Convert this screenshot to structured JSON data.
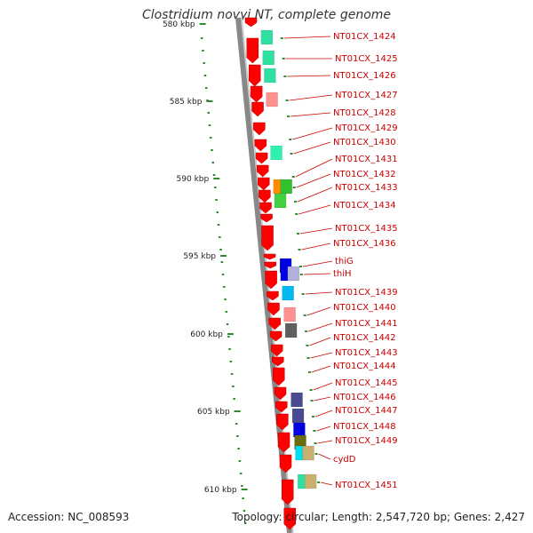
{
  "title": "Clostridium novyi NT, complete genome",
  "footer": {
    "accession": "Accession: NC_008593",
    "summary": "Topology: circular; Length: 2,547,720 bp; Genes: 2,427"
  },
  "colors": {
    "backbone": "#888888",
    "gene_arrow": "#ff0000",
    "scale_tick": "#2e8b2e",
    "label_text": "#cc0000",
    "leader_line": "#cc0000"
  },
  "scale": {
    "unit": "kbp",
    "labeled_ticks": [
      "580 kbp",
      "585 kbp",
      "590 kbp",
      "595 kbp",
      "600 kbp",
      "605 kbp",
      "610 kbp"
    ]
  },
  "genes": [
    {
      "label": "NT01CX_1424",
      "cog_colors": [
        "#30e0a0"
      ]
    },
    {
      "label": "NT01CX_1425",
      "cog_colors": [
        "#30e0a0"
      ]
    },
    {
      "label": "NT01CX_1426",
      "cog_colors": [
        "#30e0a0"
      ]
    },
    {
      "label": "NT01CX_1427",
      "cog_colors": [
        "#ff9090"
      ]
    },
    {
      "label": "NT01CX_1428",
      "cog_colors": []
    },
    {
      "label": "NT01CX_1429",
      "cog_colors": []
    },
    {
      "label": "NT01CX_1430",
      "cog_colors": [
        "#30f0b0"
      ]
    },
    {
      "label": "NT01CX_1431",
      "cog_colors": []
    },
    {
      "label": "NT01CX_1432",
      "cog_colors": [
        "#ff8c00",
        "#30c030"
      ]
    },
    {
      "label": "NT01CX_1433",
      "cog_colors": [
        "#40d040"
      ]
    },
    {
      "label": "NT01CX_1434",
      "cog_colors": []
    },
    {
      "label": "NT01CX_1435",
      "cog_colors": []
    },
    {
      "label": "NT01CX_1436",
      "cog_colors": []
    },
    {
      "label": "thiG",
      "cog_colors": [
        "#0000e0"
      ]
    },
    {
      "label": "thiH",
      "cog_colors": [
        "#0000e0",
        "#b0b0d8"
      ]
    },
    {
      "label": "NT01CX_1439",
      "cog_colors": [
        "#00b8f0"
      ]
    },
    {
      "label": "NT01CX_1440",
      "cog_colors": [
        "#ff9090"
      ]
    },
    {
      "label": "NT01CX_1441",
      "cog_colors": [
        "#606060"
      ]
    },
    {
      "label": "NT01CX_1442",
      "cog_colors": []
    },
    {
      "label": "NT01CX_1443",
      "cog_colors": []
    },
    {
      "label": "NT01CX_1444",
      "cog_colors": []
    },
    {
      "label": "NT01CX_1445",
      "cog_colors": []
    },
    {
      "label": "NT01CX_1446",
      "cog_colors": [
        "#4a4a90"
      ]
    },
    {
      "label": "NT01CX_1447",
      "cog_colors": [
        "#4a4a90"
      ]
    },
    {
      "label": "NT01CX_1448",
      "cog_colors": [
        "#0000e0"
      ]
    },
    {
      "label": "NT01CX_1449",
      "cog_colors": [
        "#6b6b10"
      ]
    },
    {
      "label": "cydD",
      "cog_colors": [
        "#00e0f0",
        "#c8b070"
      ]
    },
    {
      "label": "NT01CX_1451",
      "cog_colors": [
        "#30e0a0",
        "#c8b070"
      ]
    }
  ]
}
